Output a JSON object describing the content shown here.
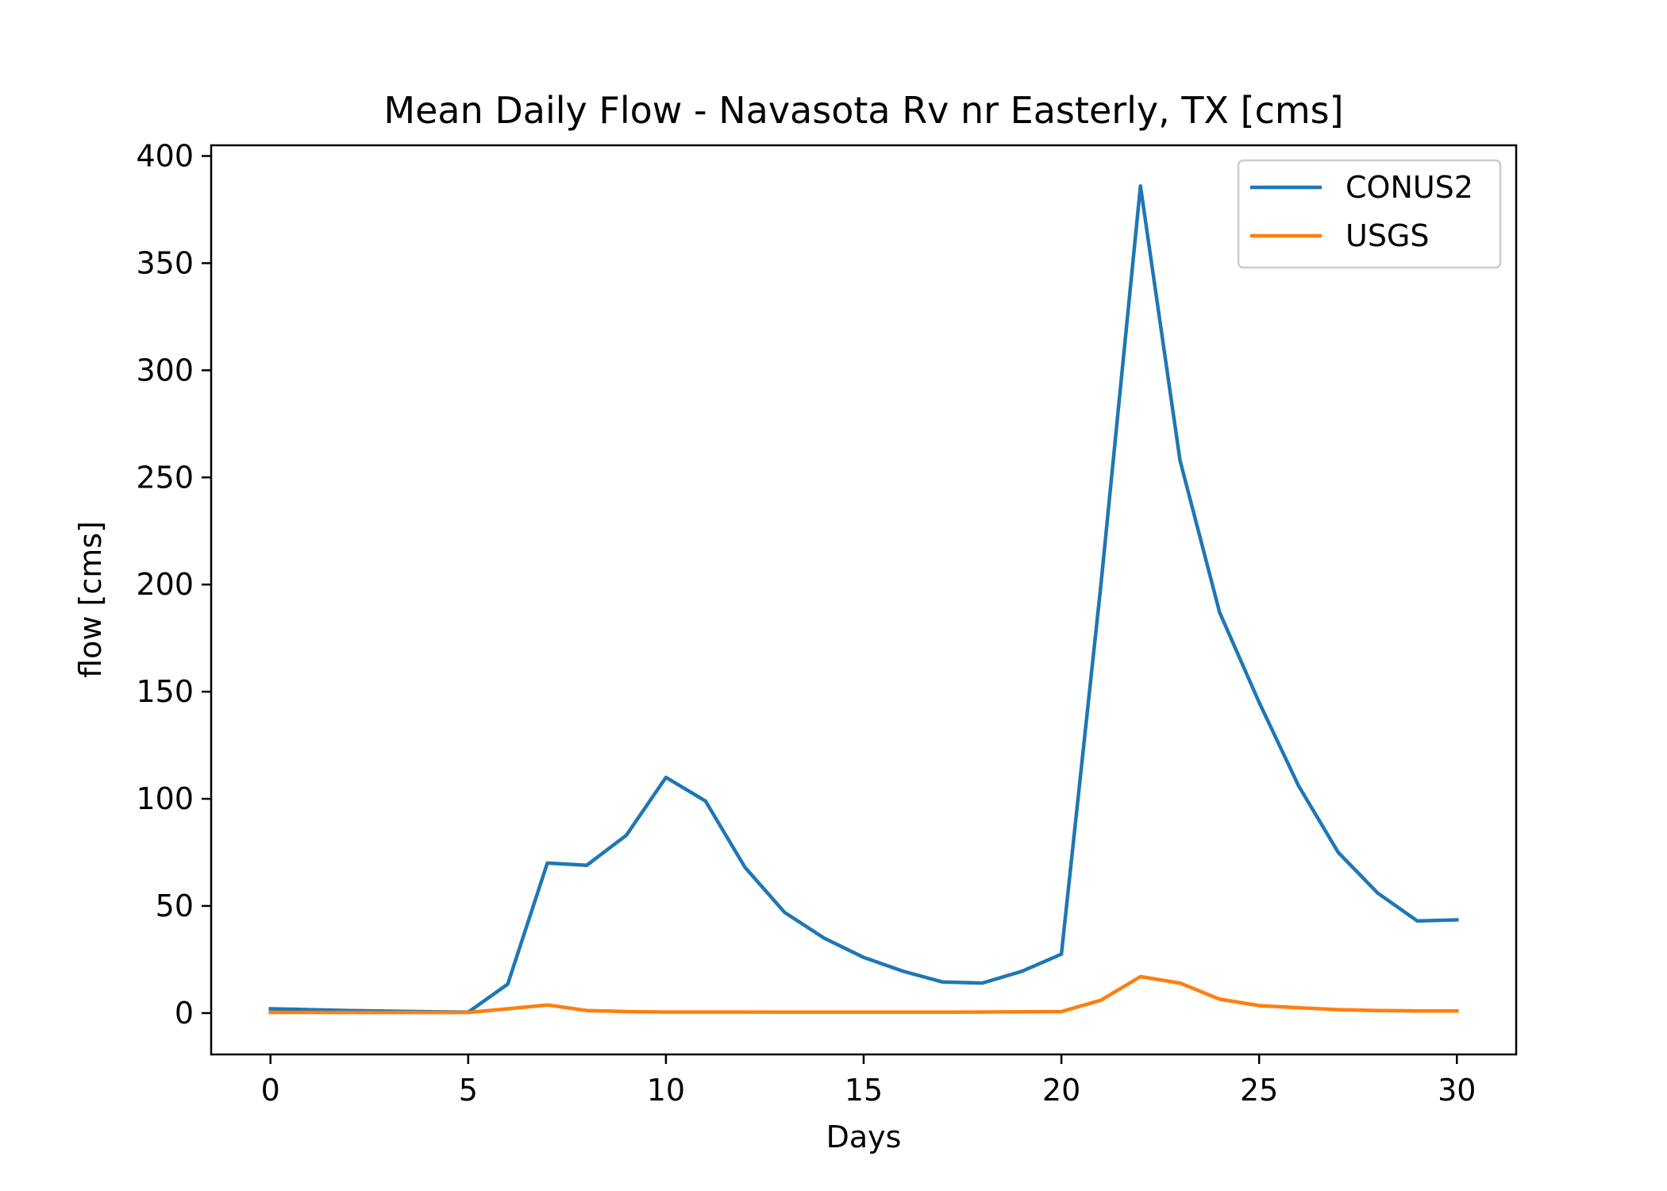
{
  "chart_data": {
    "type": "line",
    "title": "Mean Daily Flow - Navasota Rv nr Easterly, TX [cms]",
    "xlabel": "Days",
    "ylabel": "flow [cms]",
    "xlim": [
      -1.5,
      31.5
    ],
    "ylim": [
      -19.3,
      405
    ],
    "x_ticks": [
      0,
      5,
      10,
      15,
      20,
      25,
      30
    ],
    "y_ticks": [
      0,
      50,
      100,
      150,
      200,
      250,
      300,
      350,
      400
    ],
    "grid": false,
    "legend_position": "upper right",
    "x": [
      0,
      1,
      2,
      3,
      4,
      5,
      6,
      7,
      8,
      9,
      10,
      11,
      12,
      13,
      14,
      15,
      16,
      17,
      18,
      19,
      20,
      21,
      22,
      23,
      24,
      25,
      26,
      27,
      28,
      29,
      30
    ],
    "series": [
      {
        "name": "CONUS2",
        "color": "#1f77b4",
        "values": [
          2,
          1.6,
          1.2,
          0.9,
          0.6,
          0.4,
          13.5,
          70,
          69,
          83,
          110,
          99,
          68,
          47,
          35,
          26,
          19.5,
          14.5,
          14,
          19.5,
          27.5,
          200,
          386,
          258,
          187,
          145,
          106,
          75,
          56,
          43,
          43.5
        ]
      },
      {
        "name": "USGS",
        "color": "#ff7f0e",
        "values": [
          0.3,
          0.3,
          0.3,
          0.3,
          0.3,
          0.3,
          2,
          3.8,
          1.2,
          0.7,
          0.5,
          0.5,
          0.5,
          0.4,
          0.4,
          0.4,
          0.4,
          0.4,
          0.5,
          0.6,
          0.7,
          6,
          17,
          14,
          6.5,
          3.5,
          2.5,
          1.6,
          1.2,
          1,
          1
        ]
      }
    ]
  }
}
